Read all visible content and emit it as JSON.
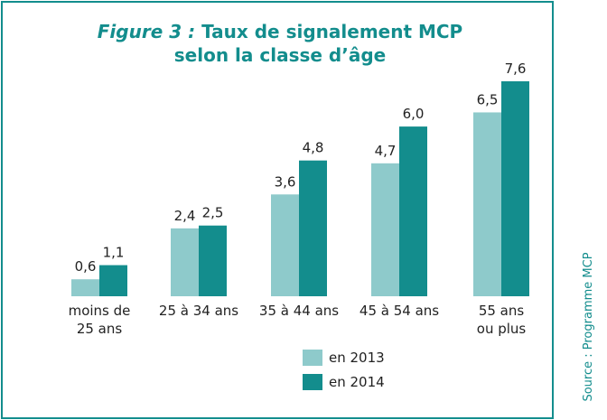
{
  "chart_data": {
    "type": "bar",
    "figure_label": "Figure 3 :",
    "title": "Taux de signalement MCP selon la classe d’âge",
    "source": "Source : Programme MCP",
    "categories": [
      "moins de\n25 ans",
      "25 à 34 ans",
      "35 à 44 ans",
      "45 à 54 ans",
      "55 ans\nou plus"
    ],
    "series": [
      {
        "name": "en 2013",
        "color": "#8ecacb",
        "values": [
          0.6,
          2.4,
          3.6,
          4.7,
          6.5
        ],
        "value_labels": [
          "0,6",
          "2,4",
          "3,6",
          "4,7",
          "6,5"
        ]
      },
      {
        "name": "en 2014",
        "color": "#138d8d",
        "values": [
          1.1,
          2.5,
          4.8,
          6.0,
          7.6
        ],
        "value_labels": [
          "1,1",
          "2,5",
          "4,8",
          "6,0",
          "7,6"
        ]
      }
    ]
  }
}
